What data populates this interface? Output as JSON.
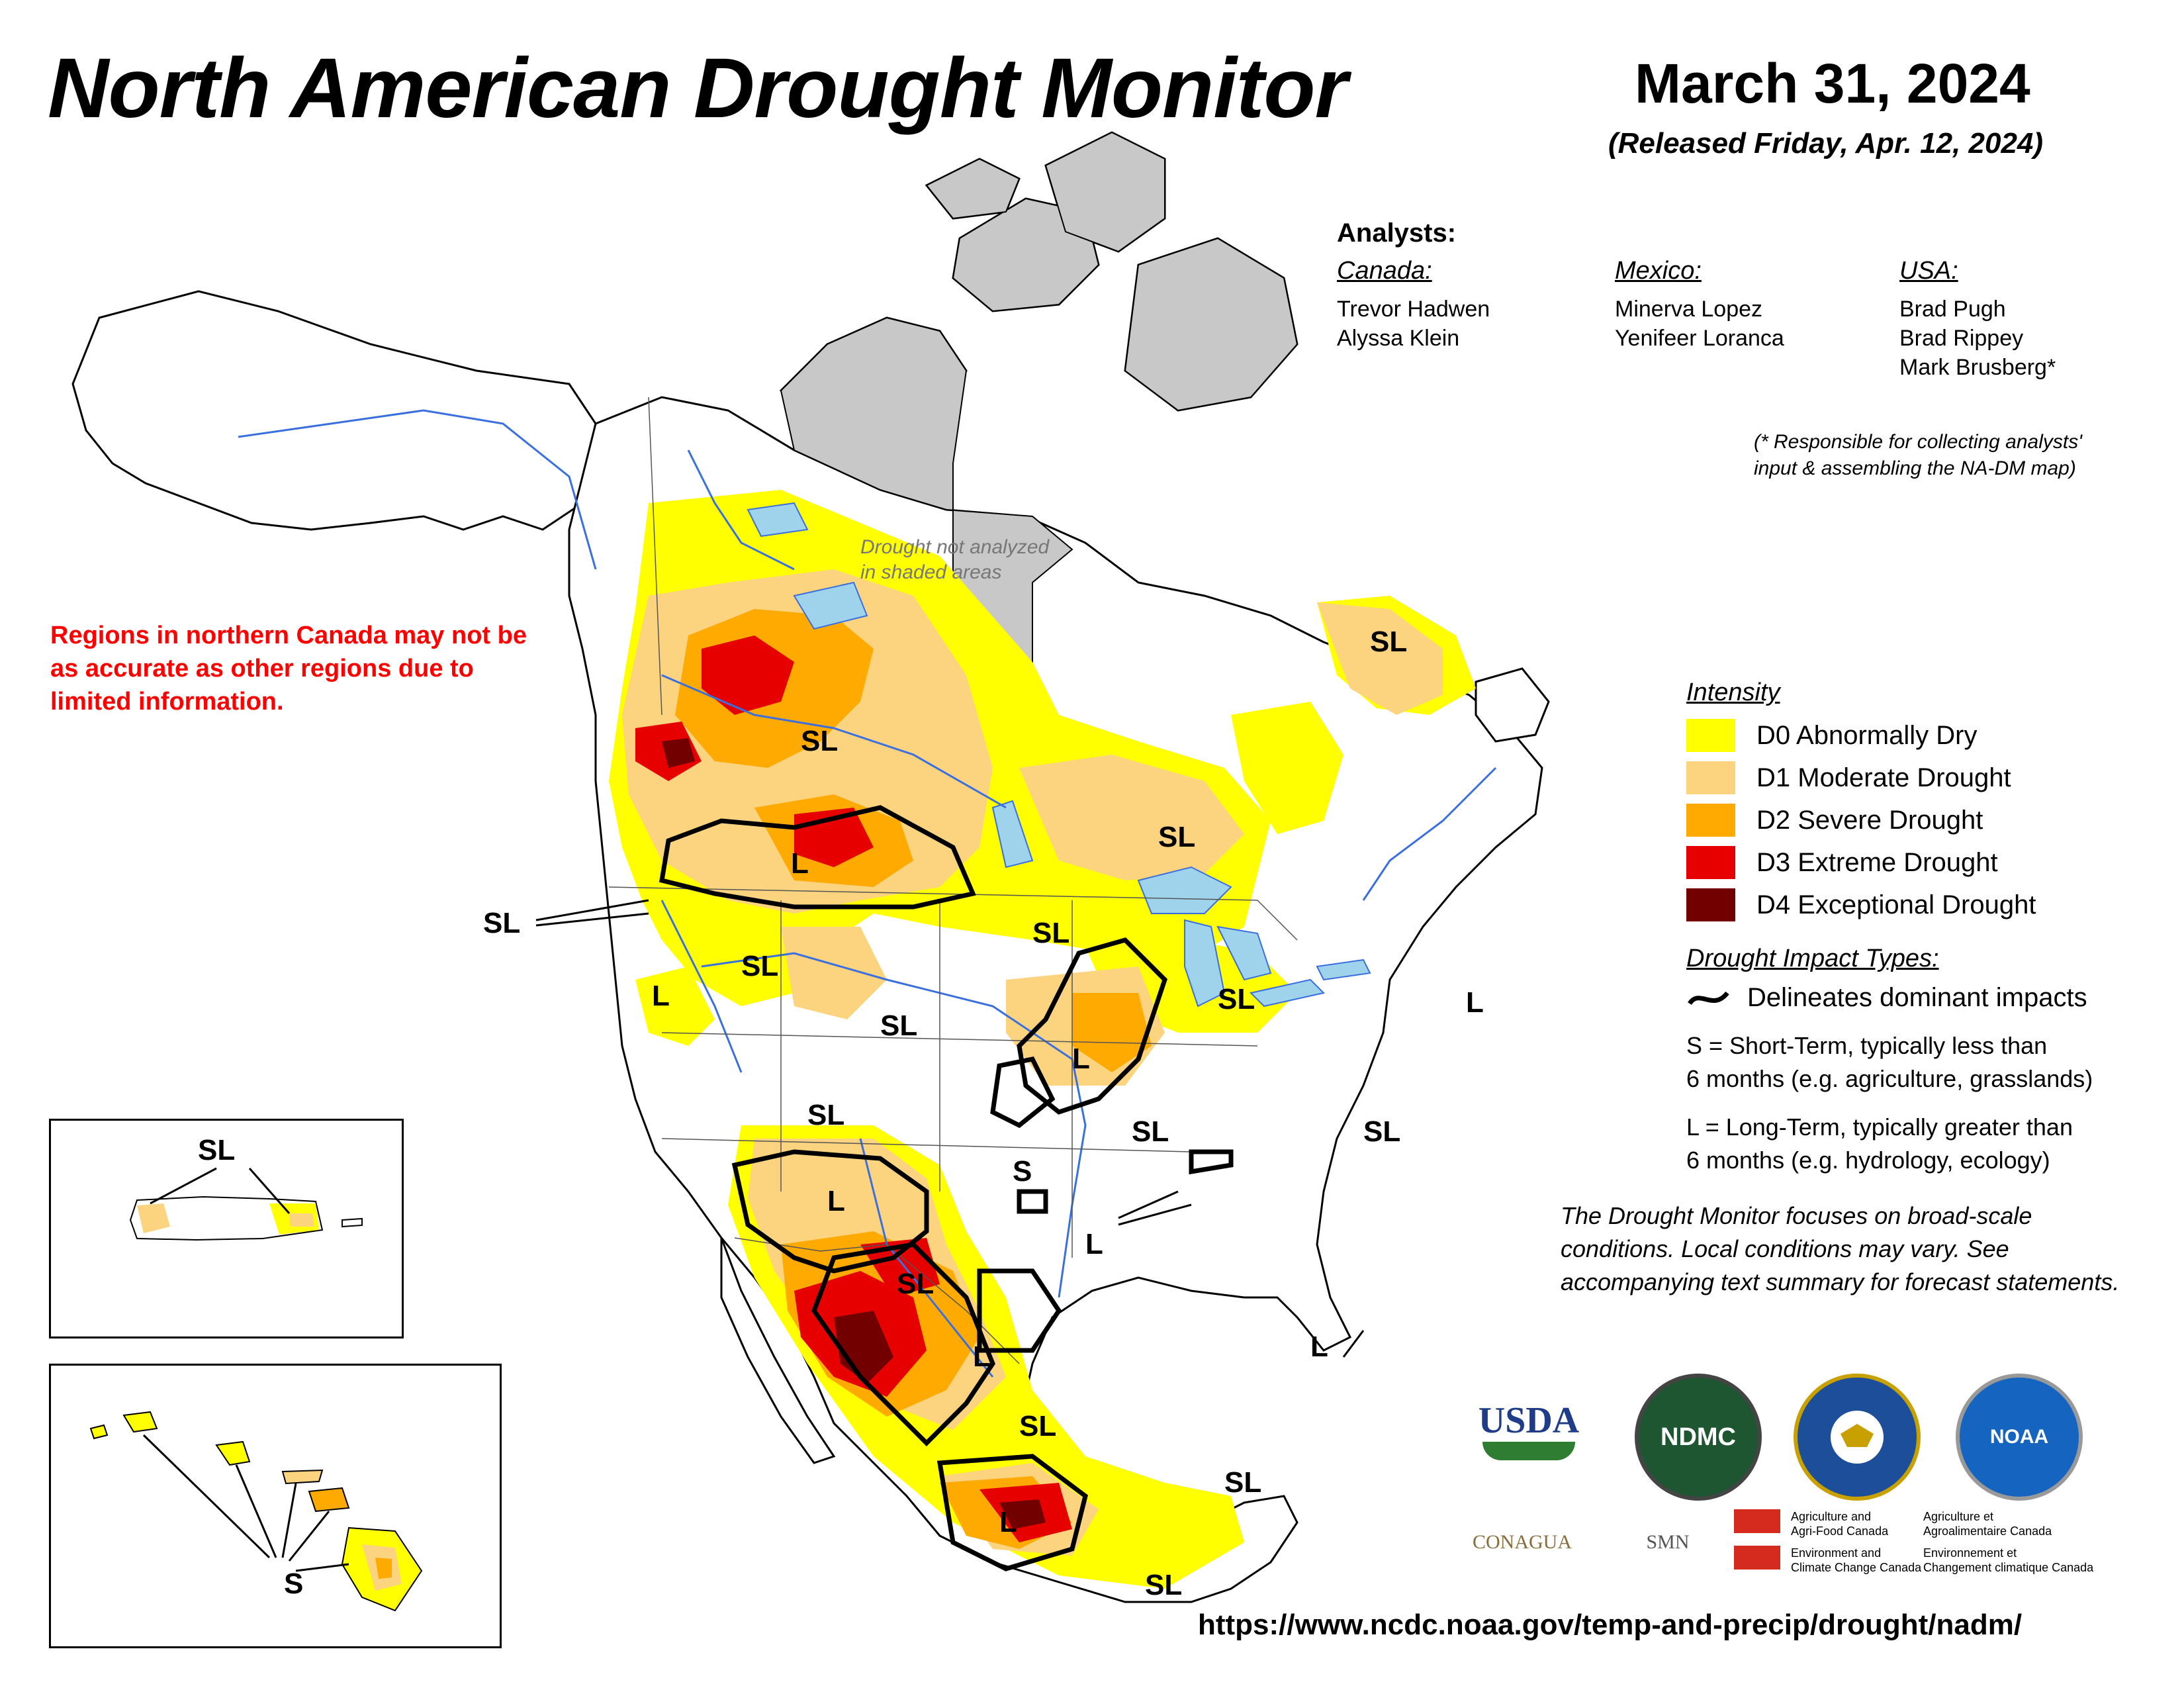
{
  "header": {
    "title": "North American Drought Monitor",
    "date": "March 31, 2024",
    "released": "(Released Friday, Apr. 12, 2024)"
  },
  "analysts": {
    "heading": "Analysts:",
    "canada": {
      "label": "Canada:",
      "names": [
        "Trevor Hadwen",
        "Alyssa Klein"
      ]
    },
    "mexico": {
      "label": "Mexico:",
      "names": [
        "Minerva Lopez",
        "Yenifeer Loranca"
      ]
    },
    "usa": {
      "label": "USA:",
      "names": [
        "Brad Pugh",
        "Brad Rippey",
        "Mark Brusberg*"
      ]
    },
    "note_line1": "(* Responsible for collecting analysts'",
    "note_line2": "input & assembling the NA-DM map)"
  },
  "notes": {
    "accuracy": "Regions in northern Canada may not be as accurate as other regions due to limited information.",
    "not_analyzed_line1": "Drought not analyzed",
    "not_analyzed_line2": "in shaded areas",
    "disclaimer": "The Drought Monitor focuses on broad-scale conditions. Local conditions may vary. See accompanying text summary for forecast statements.",
    "url": "https://www.ncdc.noaa.gov/temp-and-precip/drought/nadm/"
  },
  "legend": {
    "intensity_heading": "Intensity",
    "categories": [
      {
        "label": "D0 Abnormally Dry",
        "color": "#ffff00"
      },
      {
        "label": "D1 Moderate Drought",
        "color": "#fcd37f"
      },
      {
        "label": "D2 Severe Drought",
        "color": "#ffaa00"
      },
      {
        "label": "D3 Extreme Drought",
        "color": "#e60000"
      },
      {
        "label": "D4 Exceptional Drought",
        "color": "#730000"
      }
    ],
    "impact_heading": "Drought Impact Types:",
    "impact_line": "Delineates dominant impacts",
    "short_term_1": "S = Short-Term, typically less than",
    "short_term_2": "6 months (e.g. agriculture, grasslands)",
    "long_term_1": "L = Long-Term, typically greater than",
    "long_term_2": "6 months (e.g. hydrology, ecology)"
  },
  "colors": {
    "not_analyzed": "#c8c8c8",
    "water": "#9fd3ec",
    "rivers": "#3a6fe0",
    "impact_line": "#000000"
  },
  "map_labels": {
    "sl": "SL",
    "l": "L",
    "s": "S"
  },
  "logos": {
    "usda": "USDA",
    "ndmc": "NDMC",
    "noaa": "NOAA",
    "conagua": "CONAGUA",
    "smn": "SMN",
    "agr_en_1": "Agriculture and",
    "agr_en_2": "Agri-Food Canada",
    "agr_fr_1": "Agriculture et",
    "agr_fr_2": "Agroalimentaire Canada",
    "env_en_1": "Environment and",
    "env_en_2": "Climate Change Canada",
    "env_fr_1": "Environnement et",
    "env_fr_2": "Changement climatique Canada"
  }
}
